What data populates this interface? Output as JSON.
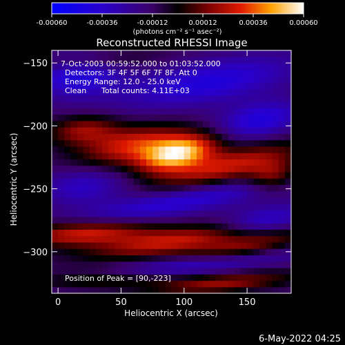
{
  "colorbar": {
    "ticks": [
      "-0.00060",
      "-0.00036",
      "-0.00012",
      "0.00012",
      "0.00036",
      "0.00060"
    ],
    "units": "(photons cm⁻² s⁻¹ asec⁻²)"
  },
  "chart_data": {
    "type": "heatmap",
    "title": "Reconstructed RHESSI Image",
    "xlabel": "Heliocentric X (arcsec)",
    "ylabel": "Heliocentric Y (arcsec)",
    "xlim": [
      -5,
      185
    ],
    "ylim": [
      -333,
      -140
    ],
    "xticks": [
      "0",
      "50",
      "100",
      "150"
    ],
    "yticks": [
      "-150",
      "-200",
      "-250",
      "-300"
    ],
    "colorbar_range": [
      -0.0006,
      0.0006
    ],
    "peak_position": [
      90,
      -223
    ],
    "annotations": {
      "time_range": "7-Oct-2003 00:59:52.000 to 01:03:52.000",
      "detectors": "Detectors: 3F 4F 5F 6F 7F 8F, Att 0",
      "energy_range": "Energy Range: 12.0 - 25.0 keV",
      "method": "Clean",
      "total_counts": "Total counts: 4.11E+03",
      "peak_label": "Position of Peak = [90,-223]"
    },
    "blobs": [
      {
        "x": 95,
        "y": -222,
        "v": 0.00062,
        "sx": 22,
        "sy": 9,
        "rot": -14
      },
      {
        "x": 60,
        "y": -215,
        "v": 0.0004,
        "sx": 30,
        "sy": 10,
        "rot": -10
      },
      {
        "x": 135,
        "y": -232,
        "v": 0.00038,
        "sx": 40,
        "sy": 9,
        "rot": -14
      },
      {
        "x": 20,
        "y": -203,
        "v": 0.0003,
        "sx": 20,
        "sy": 8,
        "rot": -5
      },
      {
        "x": 170,
        "y": -240,
        "v": 0.00028,
        "sx": 14,
        "sy": 8,
        "rot": -10
      },
      {
        "x": 20,
        "y": -285,
        "v": 0.00042,
        "sx": 38,
        "sy": 7,
        "rot": -3
      },
      {
        "x": 90,
        "y": -292,
        "v": 0.00036,
        "sx": 45,
        "sy": 7,
        "rot": -8
      },
      {
        "x": 150,
        "y": -296,
        "v": 0.0003,
        "sx": 35,
        "sy": 7,
        "rot": -10
      },
      {
        "x": 40,
        "y": -322,
        "v": 0.00032,
        "sx": 40,
        "sy": 5,
        "rot": -3
      },
      {
        "x": 130,
        "y": -325,
        "v": 0.0003,
        "sx": 40,
        "sy": 5,
        "rot": -5
      },
      {
        "x": 30,
        "y": -148,
        "v": 0.00014,
        "sx": 35,
        "sy": 5,
        "rot": -3
      },
      {
        "x": 120,
        "y": -165,
        "v": -0.0003,
        "sx": 50,
        "sy": 12,
        "rot": -10
      },
      {
        "x": 15,
        "y": -160,
        "v": -0.0003,
        "sx": 25,
        "sy": 12,
        "rot": -5
      },
      {
        "x": 160,
        "y": -195,
        "v": -0.0003,
        "sx": 25,
        "sy": 10,
        "rot": -10
      },
      {
        "x": 95,
        "y": -260,
        "v": -0.00028,
        "sx": 60,
        "sy": 8,
        "rot": -10
      },
      {
        "x": 20,
        "y": -248,
        "v": -0.00022,
        "sx": 25,
        "sy": 10,
        "rot": -5
      },
      {
        "x": 100,
        "y": -312,
        "v": -0.00028,
        "sx": 70,
        "sy": 6,
        "rot": -8
      },
      {
        "x": 165,
        "y": -275,
        "v": -0.00026,
        "sx": 25,
        "sy": 8,
        "rot": -10
      }
    ]
  },
  "footer": {
    "timestamp": "6-May-2022 04:25"
  }
}
